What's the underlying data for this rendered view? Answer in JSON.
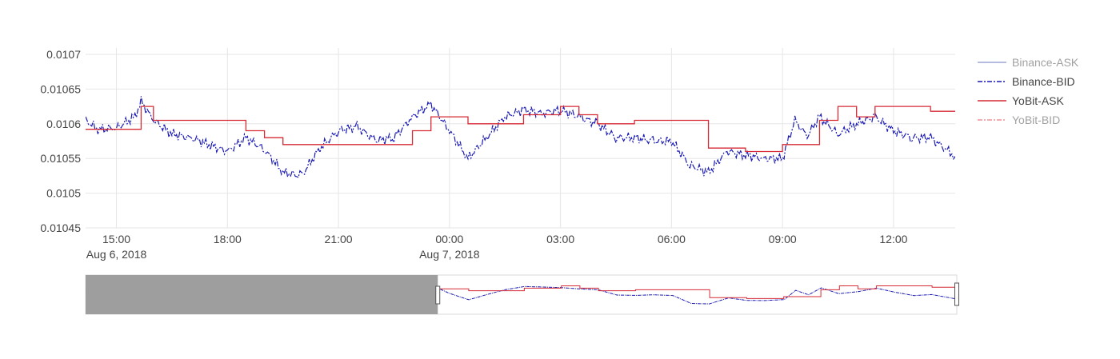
{
  "chart_data": {
    "type": "line",
    "title": "",
    "xlabel": "",
    "ylabel": "",
    "x_range": [
      "2018-08-06 14:10",
      "2018-08-07 13:40"
    ],
    "ylim": [
      0.01045,
      0.0107
    ],
    "y_ticks": [
      0.01045,
      0.0105,
      0.01055,
      0.0106,
      0.01065,
      0.0107
    ],
    "y_tick_labels": [
      "0.01045",
      "0.0105",
      "0.01055",
      "0.0106",
      "0.01065",
      "0.0107"
    ],
    "x_ticks": [
      "2018-08-06 15:00",
      "2018-08-06 18:00",
      "2018-08-06 21:00",
      "2018-08-07 00:00",
      "2018-08-07 03:00",
      "2018-08-07 06:00",
      "2018-08-07 09:00",
      "2018-08-07 12:00"
    ],
    "x_tick_labels": [
      "15:00",
      "18:00",
      "21:00",
      "00:00",
      "03:00",
      "06:00",
      "09:00",
      "12:00"
    ],
    "x_tick_sublabels": [
      "Aug 6, 2018",
      "",
      "",
      "Aug 7, 2018",
      "",
      "",
      "",
      ""
    ],
    "grid": true,
    "legend_position": "top-right",
    "legend": [
      {
        "name": "Binance-ASK",
        "visible": false,
        "dash": "solid",
        "color": "#3b4fb0"
      },
      {
        "name": "Binance-BID",
        "visible": true,
        "dash": "dashdot",
        "color": "#1a1ab4"
      },
      {
        "name": "YoBit-ASK",
        "visible": true,
        "dash": "solid",
        "color": "#d62a35"
      },
      {
        "name": "YoBit-BID",
        "visible": false,
        "dash": "dashdot",
        "color": "#d62a35"
      }
    ],
    "series": [
      {
        "name": "Binance-BID",
        "color": "#1a1ab4",
        "x": [
          "2018-08-06 14:10",
          "2018-08-06 14:30",
          "2018-08-06 15:00",
          "2018-08-06 15:30",
          "2018-08-06 15:40",
          "2018-08-06 16:00",
          "2018-08-06 16:30",
          "2018-08-06 17:00",
          "2018-08-06 17:30",
          "2018-08-06 18:00",
          "2018-08-06 18:30",
          "2018-08-06 19:00",
          "2018-08-06 19:30",
          "2018-08-06 20:00",
          "2018-08-06 20:30",
          "2018-08-06 21:00",
          "2018-08-06 21:30",
          "2018-08-06 22:00",
          "2018-08-06 22:30",
          "2018-08-06 23:00",
          "2018-08-06 23:30",
          "2018-08-07 00:00",
          "2018-08-07 00:30",
          "2018-08-07 01:00",
          "2018-08-07 01:30",
          "2018-08-07 02:00",
          "2018-08-07 02:30",
          "2018-08-07 03:00",
          "2018-08-07 03:30",
          "2018-08-07 04:00",
          "2018-08-07 04:30",
          "2018-08-07 05:00",
          "2018-08-07 05:30",
          "2018-08-07 06:00",
          "2018-08-07 06:30",
          "2018-08-07 07:00",
          "2018-08-07 07:30",
          "2018-08-07 08:00",
          "2018-08-07 08:30",
          "2018-08-07 09:00",
          "2018-08-07 09:20",
          "2018-08-07 09:40",
          "2018-08-07 10:00",
          "2018-08-07 10:30",
          "2018-08-07 11:00",
          "2018-08-07 11:30",
          "2018-08-07 12:00",
          "2018-08-07 12:30",
          "2018-08-07 13:00",
          "2018-08-07 13:40"
        ],
        "y": [
          0.010605,
          0.010592,
          0.010594,
          0.01061,
          0.010632,
          0.010605,
          0.010585,
          0.01058,
          0.01057,
          0.01056,
          0.01058,
          0.010563,
          0.01053,
          0.010525,
          0.010565,
          0.01059,
          0.010596,
          0.010576,
          0.01058,
          0.01061,
          0.010628,
          0.01059,
          0.01055,
          0.01058,
          0.01061,
          0.01062,
          0.010615,
          0.01062,
          0.01061,
          0.0106,
          0.01058,
          0.01058,
          0.010575,
          0.010575,
          0.01054,
          0.01053,
          0.01056,
          0.010555,
          0.01055,
          0.01055,
          0.010605,
          0.010582,
          0.01061,
          0.010585,
          0.0106,
          0.01061,
          0.01059,
          0.01058,
          0.01058,
          0.010553
        ]
      },
      {
        "name": "YoBit-ASK",
        "color": "#d62a35",
        "x": [
          "2018-08-06 14:10",
          "2018-08-06 15:30",
          "2018-08-06 15:40",
          "2018-08-06 16:00",
          "2018-08-06 16:30",
          "2018-08-06 17:30",
          "2018-08-06 18:00",
          "2018-08-06 18:30",
          "2018-08-06 19:00",
          "2018-08-06 19:30",
          "2018-08-06 20:30",
          "2018-08-06 22:30",
          "2018-08-06 23:00",
          "2018-08-06 23:30",
          "2018-08-07 00:00",
          "2018-08-07 00:30",
          "2018-08-07 01:00",
          "2018-08-07 02:00",
          "2018-08-07 03:00",
          "2018-08-07 03:30",
          "2018-08-07 04:00",
          "2018-08-07 04:30",
          "2018-08-07 05:00",
          "2018-08-07 05:30",
          "2018-08-07 06:30",
          "2018-08-07 07:00",
          "2018-08-07 07:30",
          "2018-08-07 08:00",
          "2018-08-07 09:00",
          "2018-08-07 09:30",
          "2018-08-07 10:00",
          "2018-08-07 10:30",
          "2018-08-07 11:00",
          "2018-08-07 11:30",
          "2018-08-07 12:00",
          "2018-08-07 13:00",
          "2018-08-07 13:40"
        ],
        "y": [
          0.010592,
          0.010592,
          0.010625,
          0.010605,
          0.010605,
          0.010605,
          0.010605,
          0.01059,
          0.01058,
          0.01057,
          0.01057,
          0.01057,
          0.01059,
          0.01061,
          0.01061,
          0.0106,
          0.0106,
          0.010613,
          0.010625,
          0.010613,
          0.0106,
          0.0106,
          0.010605,
          0.010605,
          0.010605,
          0.010565,
          0.010565,
          0.01056,
          0.01057,
          0.01057,
          0.010605,
          0.010625,
          0.01061,
          0.010625,
          0.010625,
          0.010618,
          0.010618
        ]
      }
    ],
    "range_slider": {
      "selected_start": "2018-08-06 23:40",
      "selected_end": "2018-08-07 13:40"
    }
  }
}
